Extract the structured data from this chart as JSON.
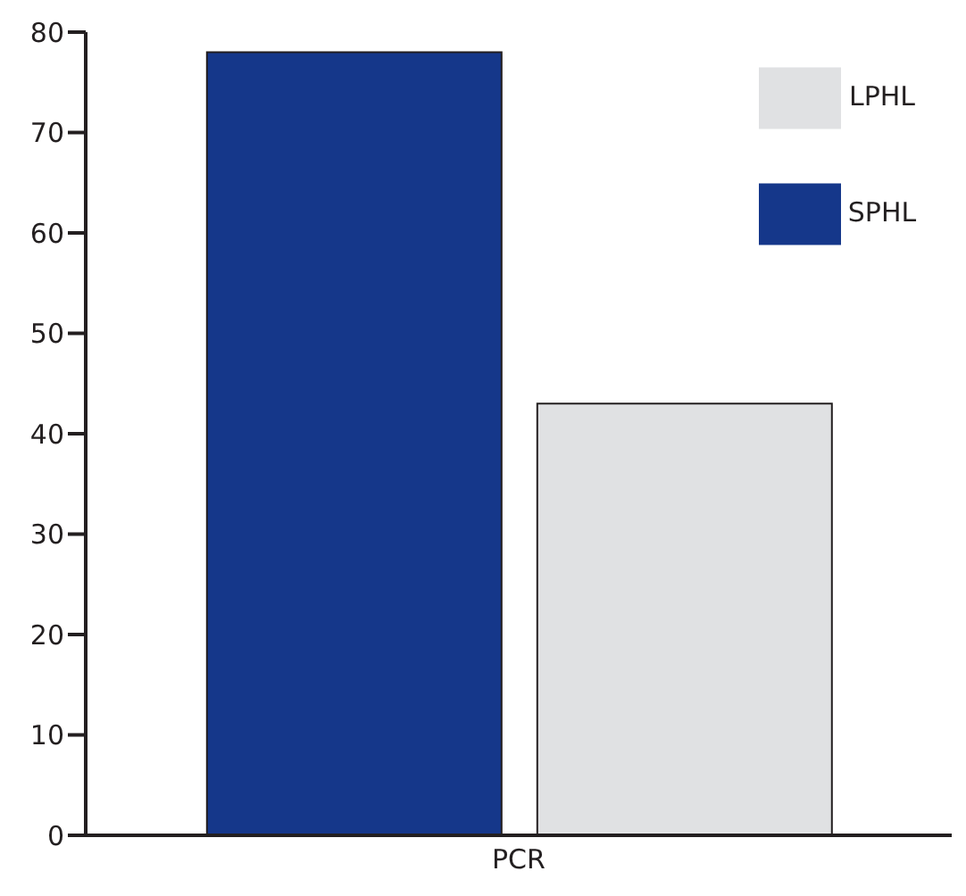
{
  "chart_data": {
    "type": "bar",
    "categories": [
      "PCR"
    ],
    "series": [
      {
        "name": "SPHL",
        "color": "#15378a",
        "values": [
          78
        ]
      },
      {
        "name": "LPHL",
        "color": "#e0e1e3",
        "values": [
          43
        ]
      }
    ],
    "ylim": [
      0,
      80
    ],
    "yticks": [
      0,
      10,
      20,
      30,
      40,
      50,
      60,
      70,
      80
    ],
    "grid": false,
    "legend": "top right"
  }
}
